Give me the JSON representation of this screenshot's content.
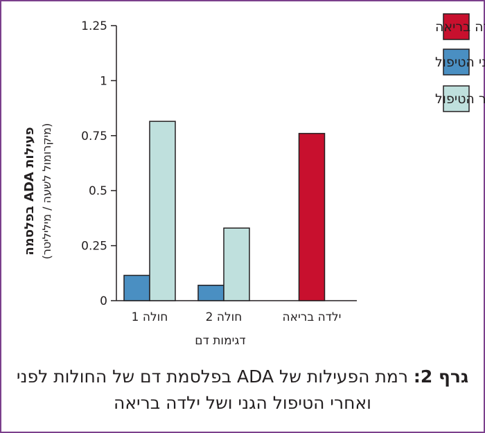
{
  "chart_data": {
    "type": "bar",
    "categories": [
      "חולה 1",
      "חולה 2",
      "ילדה בריאה"
    ],
    "series": [
      {
        "name": "לפני הטיפול",
        "color": "#4a8fc2",
        "values": [
          0.115,
          0.07,
          null
        ]
      },
      {
        "name": "לאחר הטיפול",
        "color": "#bfe0dd",
        "values": [
          0.815,
          0.33,
          null
        ]
      },
      {
        "name": "ילדה בריאה",
        "color": "#c8102e",
        "values": [
          null,
          null,
          0.76
        ]
      }
    ],
    "ylim": [
      0,
      1.25
    ],
    "yticks": [
      0,
      0.25,
      0.5,
      0.75,
      1,
      1.25
    ],
    "ytick_labels": [
      "0",
      "0.25",
      "0.5",
      "0.75",
      "1",
      "1.25"
    ],
    "ylabel_line1": "פעילות ADA בפלסמה",
    "ylabel_line2": "(מיקרומול לשעה / מיליליטר)",
    "xlabel": "דגימות דם",
    "legend": [
      {
        "label": "ילדה בריאה",
        "color": "#c8102e"
      },
      {
        "label": "לפני הטיפול",
        "color": "#4a8fc2"
      },
      {
        "label": "לאחר הטיפול",
        "color": "#bfe0dd"
      }
    ],
    "legend_position": "top-right"
  },
  "caption": {
    "bold": "גרף 2:",
    "text": " רמת הפעילות של ADA בפלסמת דם של החולות לפני ואחרי הטיפול הגני ושל ילדה בריאה"
  }
}
